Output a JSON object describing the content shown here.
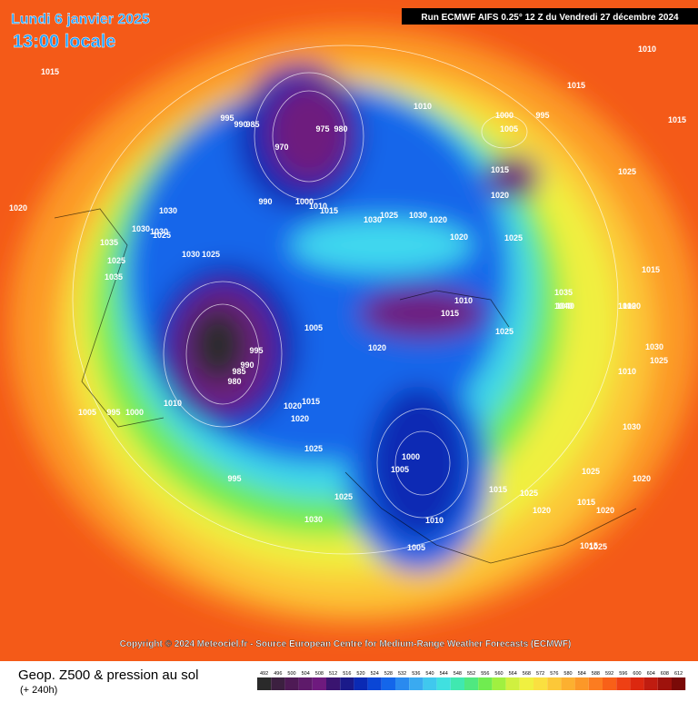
{
  "header": {
    "date": "Lundi 6 janvier 2025",
    "time": "13:00 locale",
    "run": "Run ECMWF AIFS 0.25° 12 Z du Vendredi 27 décembre 2024"
  },
  "copyright": "Copyright © 2024 Meteociel.fr - Source European Centre for Medium-Range Weather Forecasts (ECMWF)",
  "footer": {
    "title": "Geop. Z500 & pression au sol",
    "lead": "(+ 240h)"
  },
  "scale": {
    "levels": [
      492,
      496,
      500,
      504,
      508,
      512,
      516,
      520,
      524,
      528,
      532,
      536,
      540,
      544,
      548,
      552,
      556,
      560,
      564,
      568,
      572,
      576,
      580,
      584,
      588,
      592,
      596,
      600,
      604,
      608,
      612
    ],
    "colors": [
      "#2a2a2a",
      "#3c2040",
      "#4e1a55",
      "#5e1a6a",
      "#6e1a7e",
      "#3a1470",
      "#1a1a8a",
      "#0a2ab4",
      "#0a46d6",
      "#1466ea",
      "#2a8aef",
      "#3aaaf0",
      "#40c8ee",
      "#40e0e0",
      "#40e8b0",
      "#50e880",
      "#70ec50",
      "#a0f040",
      "#d0f040",
      "#f0f040",
      "#fae040",
      "#fcc838",
      "#fcb030",
      "#fc9828",
      "#fc7c20",
      "#f86018",
      "#ee4014",
      "#dc2810",
      "#c01c10",
      "#9e120c",
      "#7a0a08"
    ]
  },
  "isobar_labels": [
    "1015",
    "1020",
    "1010",
    "1015",
    "1015",
    "995",
    "990",
    "985",
    "970",
    "975",
    "980",
    "1000",
    "1005",
    "995",
    "1010",
    "1015",
    "1020",
    "1025",
    "990",
    "1000",
    "1010",
    "1015",
    "1030",
    "1025",
    "1030",
    "1020",
    "1020",
    "1025",
    "1030",
    "1030",
    "1025",
    "1035",
    "1030",
    "1025",
    "1030",
    "1025",
    "1035",
    "1040",
    "1010",
    "1015",
    "1005",
    "1020",
    "1025",
    "995",
    "990",
    "985",
    "980",
    "1010",
    "1005",
    "995",
    "1000",
    "1020",
    "1015",
    "1020",
    "1025",
    "995",
    "1025",
    "1030",
    "1000",
    "1005",
    "1010",
    "1005",
    "1015",
    "1025",
    "1020",
    "1025",
    "1015",
    "1020",
    "1025",
    "1030",
    "1020",
    "1015",
    "1010",
    "1015",
    "1020",
    "1030",
    "1040",
    "1035",
    "1025",
    "1010"
  ]
}
